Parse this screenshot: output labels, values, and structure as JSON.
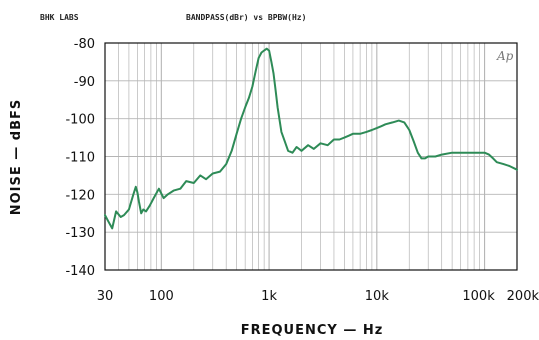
{
  "header": {
    "left": "BHK LABS",
    "center": "BANDPASS(dBr) vs BPBW(Hz)",
    "mark": "Ap"
  },
  "colors": {
    "trace": "#2e8b57",
    "grid": "#b5b5b5",
    "axis": "#111111"
  },
  "chart_data": {
    "type": "line",
    "xlabel": "FREQUENCY — Hz",
    "ylabel": "NOISE — dBFS",
    "xscale": "log",
    "xlim": [
      30,
      200000
    ],
    "ylim": [
      -140,
      -80
    ],
    "grid": true,
    "x_tick_labels": [
      {
        "value": 30,
        "label": "30"
      },
      {
        "value": 100,
        "label": "100"
      },
      {
        "value": 1000,
        "label": "1k"
      },
      {
        "value": 10000,
        "label": "10k"
      },
      {
        "value": 100000,
        "label": "100k"
      },
      {
        "value": 200000,
        "label": "200k"
      }
    ],
    "y_tick_labels": [
      {
        "value": -80,
        "label": "-80"
      },
      {
        "value": -90,
        "label": "-90"
      },
      {
        "value": -100,
        "label": "-100"
      },
      {
        "value": -110,
        "label": "-110"
      },
      {
        "value": -120,
        "label": "-120"
      },
      {
        "value": -130,
        "label": "-130"
      },
      {
        "value": -140,
        "label": "-140"
      }
    ],
    "series": [
      {
        "x": [
          30,
          32,
          35,
          38,
          42,
          45,
          50,
          55,
          58,
          60,
          62,
          65,
          68,
          72,
          78,
          85,
          95,
          105,
          115,
          130,
          150,
          170,
          200,
          230,
          260,
          300,
          350,
          400,
          450,
          500,
          550,
          600,
          650,
          700,
          750,
          800,
          850,
          900,
          950,
          1000,
          1050,
          1100,
          1150,
          1200,
          1300,
          1400,
          1500,
          1650,
          1800,
          2000,
          2300,
          2600,
          3000,
          3500,
          4000,
          4500,
          5000,
          5500,
          6000,
          7000,
          8000,
          9000,
          10000,
          11000,
          12000,
          14000,
          16000,
          18000,
          20000,
          22000,
          24000,
          26000,
          28000,
          30000,
          35000,
          40000,
          50000,
          60000,
          70000,
          80000,
          90000,
          100000,
          110000,
          120000,
          130000,
          150000,
          170000,
          200000
        ],
        "values": [
          -125.5,
          -127,
          -129,
          -124.5,
          -126,
          -125.5,
          -124,
          -120,
          -118,
          -119.5,
          -122,
          -125,
          -124,
          -124.5,
          -123,
          -121,
          -118.5,
          -121,
          -120,
          -119,
          -118.5,
          -116.5,
          -117,
          -115,
          -116,
          -114.5,
          -114,
          -112,
          -108.5,
          -104,
          -100,
          -97,
          -94.5,
          -91.5,
          -87.5,
          -84,
          -82.5,
          -82,
          -81.5,
          -82,
          -85,
          -88,
          -92.5,
          -97,
          -103.5,
          -106,
          -108.5,
          -109,
          -107.5,
          -108.5,
          -107,
          -108,
          -106.5,
          -107,
          -105.5,
          -105.5,
          -105,
          -104.5,
          -104,
          -104,
          -103.5,
          -103,
          -102.5,
          -102,
          -101.5,
          -101,
          -100.5,
          -101,
          -103,
          -106,
          -109,
          -110.5,
          -110.5,
          -110,
          -110,
          -109.5,
          -109,
          -109,
          -109,
          -109,
          -109,
          -109,
          -109.5,
          -110.5,
          -111.5,
          -112,
          -112.5,
          -113.5
        ]
      }
    ]
  }
}
